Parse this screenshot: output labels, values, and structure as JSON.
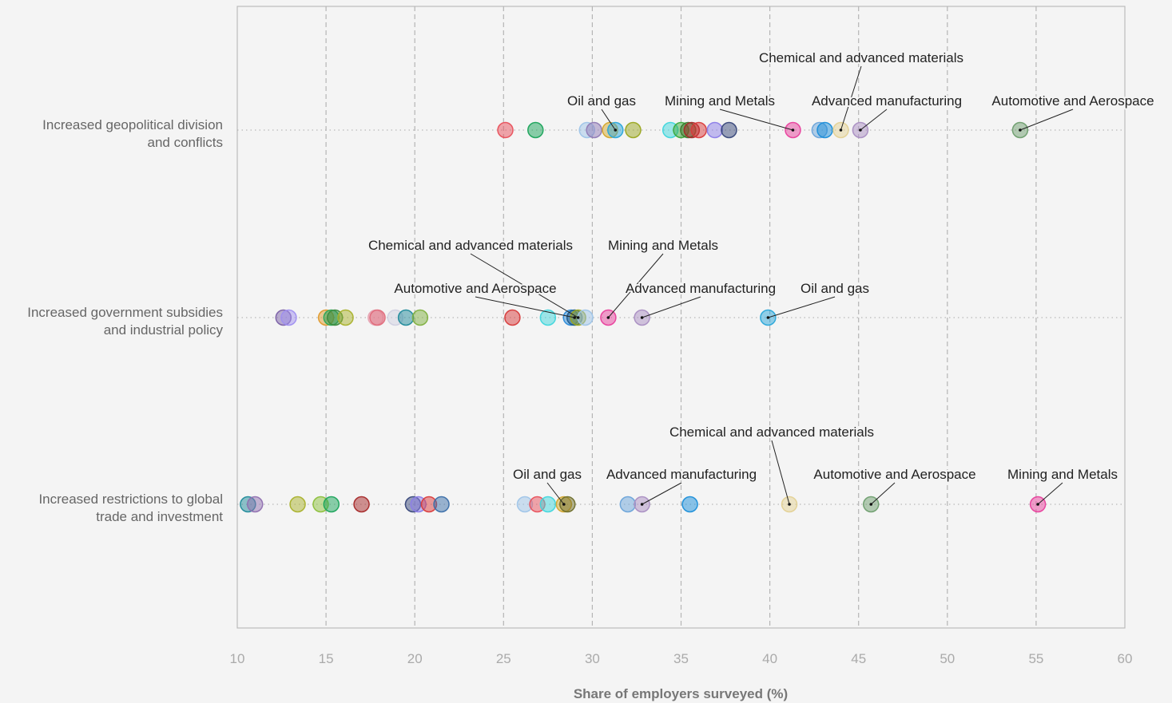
{
  "chart_data": {
    "type": "scatter",
    "xlabel": "Share of employers surveyed (%)",
    "xlim": [
      10,
      60
    ],
    "xticks": [
      "10",
      "15",
      "20",
      "25",
      "30",
      "35",
      "40",
      "45",
      "50",
      "55",
      "60"
    ],
    "grid": true,
    "categories": [
      {
        "label_lines": [
          "Increased geopolitical division",
          "and conflicts"
        ],
        "points": [
          {
            "x": 25.1,
            "color": "#e8505b"
          },
          {
            "x": 26.8,
            "color": "#1aa35a"
          },
          {
            "x": 29.7,
            "color": "#9ec4e8"
          },
          {
            "x": 30.1,
            "color": "#8f7ab5"
          },
          {
            "x": 31.0,
            "color": "#d4a72c"
          },
          {
            "x": 31.3,
            "color": "#2aa6d9"
          },
          {
            "x": 32.3,
            "color": "#9aa61f"
          },
          {
            "x": 34.4,
            "color": "#3fd6dc"
          },
          {
            "x": 35.0,
            "color": "#3aaa3a"
          },
          {
            "x": 35.4,
            "color": "#3d7a2e"
          },
          {
            "x": 35.6,
            "color": "#a52828"
          },
          {
            "x": 36.0,
            "color": "#d93a3a"
          },
          {
            "x": 36.9,
            "color": "#8c7de8"
          },
          {
            "x": 37.7,
            "color": "#37477a"
          },
          {
            "x": 41.3,
            "color": "#e83f9c"
          },
          {
            "x": 42.8,
            "color": "#6aa3d9"
          },
          {
            "x": 43.1,
            "color": "#1a8ed9"
          },
          {
            "x": 44.0,
            "color": "#e3d194"
          },
          {
            "x": 45.1,
            "color": "#a98ec2"
          },
          {
            "x": 54.1,
            "color": "#6e9e6e"
          }
        ],
        "annotations": [
          {
            "text": "Oil and gas",
            "x": 31.3
          },
          {
            "text": "Mining and Metals",
            "x": 41.3
          },
          {
            "text": "Advanced manufacturing",
            "x": 45.1
          },
          {
            "text": "Chemical and advanced materials",
            "x": 44.0
          },
          {
            "text": "Automotive and Aerospace",
            "x": 54.1
          }
        ]
      },
      {
        "label_lines": [
          "Increased government subsidies",
          "and industrial policy"
        ],
        "points": [
          {
            "x": 12.6,
            "color": "#7a5fa6"
          },
          {
            "x": 12.9,
            "color": "#9f8ff0"
          },
          {
            "x": 15.0,
            "color": "#e09a2c"
          },
          {
            "x": 15.3,
            "color": "#2aa85a"
          },
          {
            "x": 15.5,
            "color": "#3d8a3d"
          },
          {
            "x": 16.1,
            "color": "#a9b12b"
          },
          {
            "x": 17.8,
            "color": "#e6a0b0"
          },
          {
            "x": 17.9,
            "color": "#e06a7a"
          },
          {
            "x": 18.9,
            "color": "#d0d0e0"
          },
          {
            "x": 19.5,
            "color": "#1f8a9a"
          },
          {
            "x": 20.3,
            "color": "#7fb03f"
          },
          {
            "x": 25.5,
            "color": "#d73a3a"
          },
          {
            "x": 27.5,
            "color": "#3fd6dc"
          },
          {
            "x": 28.8,
            "color": "#2a8ad9"
          },
          {
            "x": 29.0,
            "color": "#1f5a8a"
          },
          {
            "x": 29.2,
            "color": "#9aa61f"
          },
          {
            "x": 29.6,
            "color": "#9ec4e8"
          },
          {
            "x": 30.9,
            "color": "#e83f9c"
          },
          {
            "x": 32.8,
            "color": "#a98ec2"
          },
          {
            "x": 39.9,
            "color": "#2aa6d9"
          }
        ],
        "annotations": [
          {
            "text": "Chemical and advanced materials",
            "x": 29.2
          },
          {
            "text": "Automotive and Aerospace",
            "x": 29.0
          },
          {
            "text": "Mining and Metals",
            "x": 30.9
          },
          {
            "text": "Advanced manufacturing",
            "x": 32.8
          },
          {
            "text": "Oil and gas",
            "x": 39.9
          }
        ]
      },
      {
        "label_lines": [
          "Increased restrictions to global",
          "trade and investment"
        ],
        "points": [
          {
            "x": 10.6,
            "color": "#1f8a9a"
          },
          {
            "x": 11.0,
            "color": "#8f6fb0"
          },
          {
            "x": 13.4,
            "color": "#a9b12b"
          },
          {
            "x": 14.7,
            "color": "#8cbf3a"
          },
          {
            "x": 15.3,
            "color": "#1aa35a"
          },
          {
            "x": 17.0,
            "color": "#a52828"
          },
          {
            "x": 19.9,
            "color": "#37477a"
          },
          {
            "x": 20.2,
            "color": "#8c7de8"
          },
          {
            "x": 20.8,
            "color": "#d93a3a"
          },
          {
            "x": 21.5,
            "color": "#3a6ea8"
          },
          {
            "x": 26.2,
            "color": "#9ec4e8"
          },
          {
            "x": 26.9,
            "color": "#e8505b"
          },
          {
            "x": 27.5,
            "color": "#3fd6dc"
          },
          {
            "x": 28.4,
            "color": "#d4a72c"
          },
          {
            "x": 28.6,
            "color": "#6e6e2a"
          },
          {
            "x": 32.0,
            "color": "#6aa3d9"
          },
          {
            "x": 32.8,
            "color": "#a98ec2"
          },
          {
            "x": 35.5,
            "color": "#1a8ed9"
          },
          {
            "x": 41.1,
            "color": "#e3d194"
          },
          {
            "x": 45.7,
            "color": "#6e9e6e"
          },
          {
            "x": 55.1,
            "color": "#e83f9c"
          }
        ],
        "annotations": [
          {
            "text": "Oil and gas",
            "x": 28.4
          },
          {
            "text": "Advanced manufacturing",
            "x": 32.8
          },
          {
            "text": "Chemical and advanced materials",
            "x": 41.1
          },
          {
            "text": "Automotive and Aerospace",
            "x": 45.7
          },
          {
            "text": "Mining and Metals",
            "x": 55.1
          }
        ]
      }
    ]
  }
}
